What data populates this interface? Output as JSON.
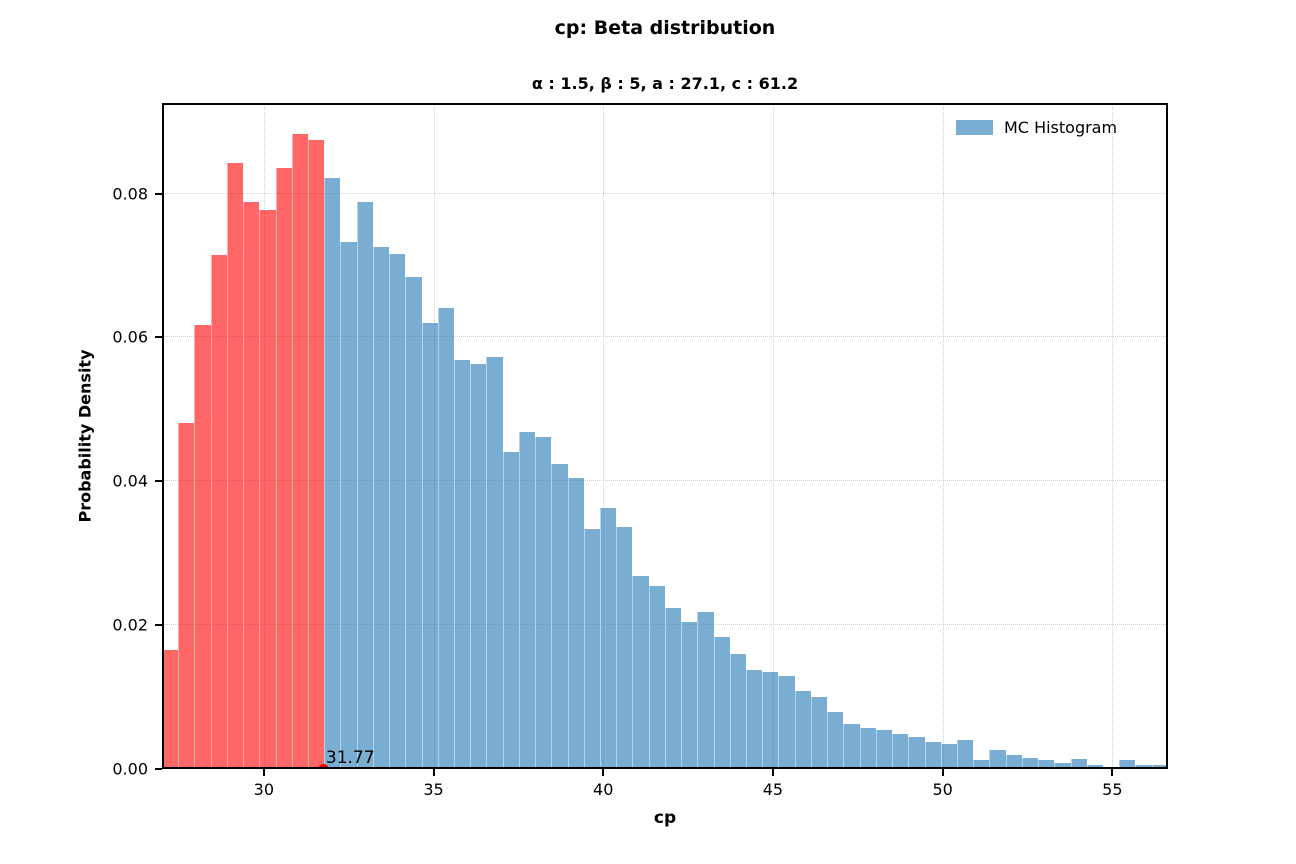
{
  "chart_data": {
    "type": "bar",
    "variant": "histogram",
    "title": "cp: Beta distribution",
    "subtitle": "α : 1.5, β : 5, a : 27.1, c : 61.2",
    "xlabel": "cp",
    "ylabel": "Probability Density",
    "xlim": [
      27.0,
      56.64
    ],
    "ylim": [
      0,
      0.0926
    ],
    "grid": "dotted",
    "legend_position": "upper right",
    "legend_frame": false,
    "legend": {
      "label": "MC Histogram"
    },
    "xticks": [
      "30",
      "35",
      "40",
      "45",
      "50",
      "55"
    ],
    "xtick_values": [
      30,
      35,
      40,
      45,
      50,
      55
    ],
    "yticks": [
      "0.00",
      "0.02",
      "0.04",
      "0.06",
      "0.08"
    ],
    "ytick_values": [
      0,
      0.02,
      0.04,
      0.06,
      0.08
    ],
    "bin_start": 27.0,
    "bin_width": 0.478,
    "values": [
      0.0165,
      0.0481,
      0.0617,
      0.0715,
      0.0842,
      0.0788,
      0.0777,
      0.0835,
      0.0883,
      0.0875,
      0.0822,
      0.0733,
      0.0789,
      0.0726,
      0.0716,
      0.0684,
      0.062,
      0.0641,
      0.0568,
      0.0563,
      0.0573,
      0.0441,
      0.0468,
      0.0461,
      0.0424,
      0.0405,
      0.0334,
      0.0363,
      0.0336,
      0.0269,
      0.0255,
      0.0224,
      0.0204,
      0.0219,
      0.0184,
      0.016,
      0.0138,
      0.0135,
      0.0129,
      0.0109,
      0.01,
      0.0079,
      0.0063,
      0.0057,
      0.0054,
      0.0049,
      0.0045,
      0.0038,
      0.0035,
      0.0041,
      0.0013,
      0.0026,
      0.002,
      0.0015,
      0.0013,
      0.0008,
      0.0014,
      0.0006,
      0.0002,
      0.0013,
      0.0005,
      0.0006
    ],
    "red_threshold": 31.77,
    "annotation": {
      "label": "31.77",
      "x": 31.77,
      "y": 0,
      "marker": "red-dot"
    },
    "colors": {
      "bar_blue": "rgba(31,119,180,0.6)",
      "bar_red": "rgba(255,0,0,0.6)",
      "marker_red": "#f20000",
      "grid": "#cfcfcf",
      "frame": "#000000",
      "text": "#000000"
    }
  }
}
